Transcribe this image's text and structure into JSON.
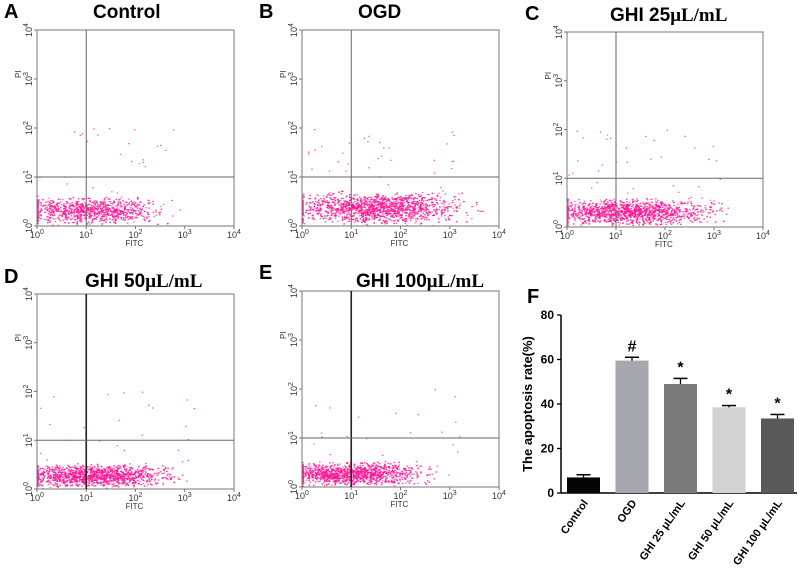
{
  "figure": {
    "flow_panels": [
      {
        "label": "A",
        "title": "Control",
        "title_main": "Control",
        "title_suffix": ""
      },
      {
        "label": "B",
        "title": "OGD",
        "title_main": "OGD",
        "title_suffix": ""
      },
      {
        "label": "C",
        "title": "GHI 25μL/mL",
        "title_main": "GHI 25",
        "title_suffix": "μL/mL"
      },
      {
        "label": "D",
        "title": "GHI 50μL/mL",
        "title_main": "GHI 50",
        "title_suffix": "μL/mL"
      },
      {
        "label": "E",
        "title": "GHI 100μL/mL",
        "title_main": "GHI 100",
        "title_suffix": "μL/mL"
      }
    ],
    "flow_axes": {
      "xlabel": "FITC",
      "ylabel": "PI",
      "tick_base": "10",
      "tick_exponents": [
        "0",
        "1",
        "2",
        "3",
        "4"
      ]
    },
    "bar_panel_label": "F",
    "dot_color": "#ff1493"
  },
  "chart_data": [
    {
      "type": "scatter",
      "panel": "A",
      "title": "Control",
      "xlabel": "FITC",
      "ylabel": "PI",
      "x_scale": "log",
      "y_scale": "log",
      "xlim": [
        1,
        10000
      ],
      "ylim": [
        1,
        10000
      ],
      "quadrant_gates": {
        "x": 10,
        "y": 10
      },
      "population": {
        "center": [
          5,
          2.5
        ],
        "spread_x": [
          1,
          300
        ],
        "spread_y": [
          1,
          5
        ],
        "density": 900,
        "sparse_points": 30
      }
    },
    {
      "type": "scatter",
      "panel": "B",
      "title": "OGD",
      "xlabel": "FITC",
      "ylabel": "PI",
      "x_scale": "log",
      "y_scale": "log",
      "xlim": [
        1,
        10000
      ],
      "ylim": [
        1,
        10000
      ],
      "quadrant_gates": {
        "x": 10,
        "y": 10
      },
      "population": {
        "center": [
          12,
          3
        ],
        "spread_x": [
          1,
          1000
        ],
        "spread_y": [
          1,
          20
        ],
        "density": 1400,
        "sparse_points": 60
      }
    },
    {
      "type": "scatter",
      "panel": "C",
      "title": "GHI 25μL/mL",
      "xlabel": "FITC",
      "ylabel": "PI",
      "x_scale": "log",
      "y_scale": "log",
      "xlim": [
        1,
        10000
      ],
      "ylim": [
        1,
        10000
      ],
      "quadrant_gates": {
        "x": 10,
        "y": 10
      },
      "population": {
        "center": [
          8,
          2.5
        ],
        "spread_x": [
          1,
          800
        ],
        "spread_y": [
          1,
          10
        ],
        "density": 1300,
        "sparse_points": 45
      }
    },
    {
      "type": "scatter",
      "panel": "D",
      "title": "GHI 50μL/mL",
      "xlabel": "FITC",
      "ylabel": "PI",
      "x_scale": "log",
      "y_scale": "log",
      "xlim": [
        1,
        10000
      ],
      "ylim": [
        1,
        10000
      ],
      "quadrant_gates": {
        "x": 10,
        "y": 10
      },
      "population": {
        "center": [
          6,
          2.2
        ],
        "spread_x": [
          1,
          500
        ],
        "spread_y": [
          1,
          6
        ],
        "density": 1300,
        "sparse_points": 35
      }
    },
    {
      "type": "scatter",
      "panel": "E",
      "title": "GHI 100μL/mL",
      "xlabel": "FITC",
      "ylabel": "PI",
      "x_scale": "log",
      "y_scale": "log",
      "xlim": [
        1,
        10000
      ],
      "ylim": [
        1,
        10000
      ],
      "quadrant_gates": {
        "x": 10,
        "y": 10
      },
      "population": {
        "center": [
          4,
          2.2
        ],
        "spread_x": [
          1,
          400
        ],
        "spread_y": [
          1,
          6
        ],
        "density": 1200,
        "sparse_points": 30
      }
    },
    {
      "type": "bar",
      "panel": "F",
      "title": "",
      "xlabel": "",
      "ylabel": "The apoptosis rate(%)",
      "ylim": [
        0,
        80
      ],
      "yticks": [
        0,
        20,
        40,
        60,
        80
      ],
      "categories": [
        "Control",
        "OGD",
        "GHI 25 μL/mL",
        "GHI 50 μL/mL",
        "GHI 100 μL/mL"
      ],
      "values": [
        7,
        59.5,
        49,
        38.5,
        33.5
      ],
      "errors": [
        1.2,
        1.5,
        2.5,
        0.8,
        1.8
      ],
      "significance": [
        "",
        "#",
        "*",
        "*",
        "*"
      ],
      "colors": [
        "#050505",
        "#a7a7af",
        "#7a7a7a",
        "#d2d2d2",
        "#595959"
      ]
    }
  ]
}
